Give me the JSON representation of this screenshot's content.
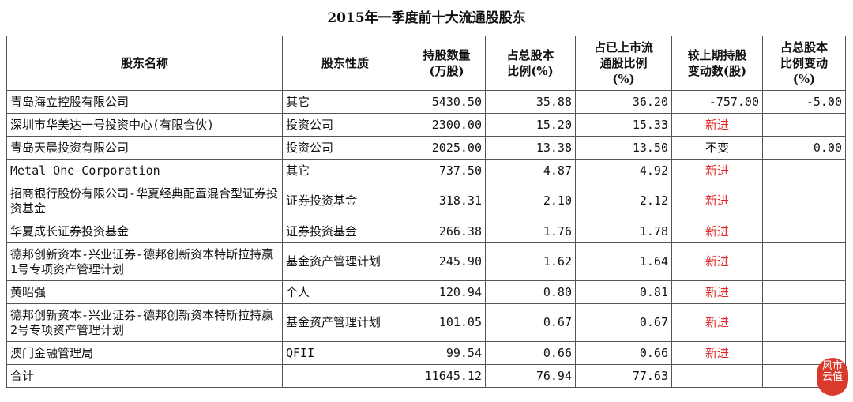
{
  "title": "2015年一季度前十大流通股股东",
  "headers": [
    "股东名称",
    "股东性质",
    "持股数量\n(万股)",
    "占总股本\n比例(%)",
    "占已上市流\n通股比例\n(%)",
    "较上期持股\n变动数(股)",
    "占总股本\n比例变动\n(%)"
  ],
  "rows": [
    {
      "name": "青岛海立控股有限公司",
      "type": "其它",
      "shares": "5430.50",
      "pct_total": "35.88",
      "pct_float": "36.20",
      "change": "-757.00",
      "pct_change": "-5.00"
    },
    {
      "name": "深圳市华美达一号投资中心(有限合伙)",
      "type": "投资公司",
      "shares": "2300.00",
      "pct_total": "15.20",
      "pct_float": "15.33",
      "change": "新进",
      "pct_change": ""
    },
    {
      "name": "青岛天晨投资有限公司",
      "type": "投资公司",
      "shares": "2025.00",
      "pct_total": "13.38",
      "pct_float": "13.50",
      "change": "不变",
      "pct_change": "0.00"
    },
    {
      "name": "Metal One Corporation",
      "type": "其它",
      "shares": "737.50",
      "pct_total": "4.87",
      "pct_float": "4.92",
      "change": "新进",
      "pct_change": ""
    },
    {
      "name": "招商银行股份有限公司-华夏经典配置混合型证券投资基金",
      "type": "证券投资基金",
      "shares": "318.31",
      "pct_total": "2.10",
      "pct_float": "2.12",
      "change": "新进",
      "pct_change": ""
    },
    {
      "name": "华夏成长证券投资基金",
      "type": "证券投资基金",
      "shares": "266.38",
      "pct_total": "1.76",
      "pct_float": "1.78",
      "change": "新进",
      "pct_change": ""
    },
    {
      "name": "德邦创新资本-兴业证券-德邦创新资本特斯拉持赢1号专项资产管理计划",
      "type": "基金资产管理计划",
      "shares": "245.90",
      "pct_total": "1.62",
      "pct_float": "1.64",
      "change": "新进",
      "pct_change": ""
    },
    {
      "name": "黄昭强",
      "type": "个人",
      "shares": "120.94",
      "pct_total": "0.80",
      "pct_float": "0.81",
      "change": "新进",
      "pct_change": ""
    },
    {
      "name": "德邦创新资本-兴业证券-德邦创新资本特斯拉持赢2号专项资产管理计划",
      "type": "基金资产管理计划",
      "shares": "101.05",
      "pct_total": "0.67",
      "pct_float": "0.67",
      "change": "新进",
      "pct_change": ""
    },
    {
      "name": "澳门金融管理局",
      "type": "QFII",
      "shares": "99.54",
      "pct_total": "0.66",
      "pct_float": "0.66",
      "change": "新进",
      "pct_change": ""
    },
    {
      "name": "合计",
      "type": "",
      "shares": "11645.12",
      "pct_total": "76.94",
      "pct_float": "77.63",
      "change": "",
      "pct_change": ""
    }
  ],
  "logo_text": "风云市值",
  "colors": {
    "new_entry": "#e02828",
    "logo": "#d93a2b"
  }
}
